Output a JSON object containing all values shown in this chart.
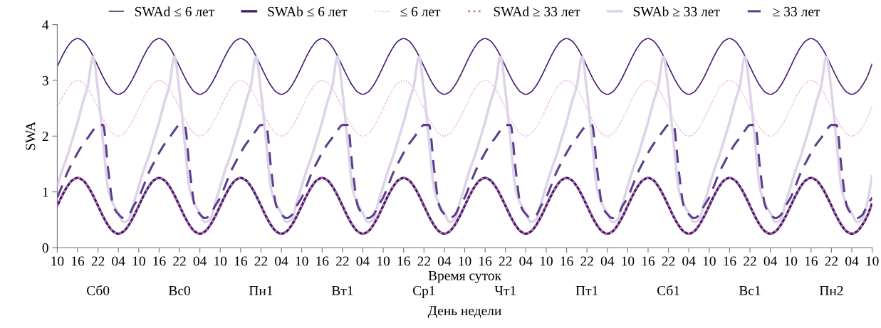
{
  "chart_data": {
    "type": "line",
    "xlabel": "Время суток",
    "ylabel": "SWA",
    "x2label": "День недели",
    "ylim": [
      0,
      4
    ],
    "yticks": [
      0,
      1,
      2,
      3,
      4
    ],
    "annotations": [
      "Сб0",
      "Вс0",
      "Пн1",
      "Вт1",
      "Ср1",
      "Чт1",
      "Пт1",
      "Сб1",
      "Вс1",
      "Пн2"
    ],
    "categories": [
      "10",
      null,
      null,
      null,
      "16",
      null,
      null,
      null,
      "22",
      null,
      null,
      null,
      "04",
      null,
      null,
      null,
      "10",
      null,
      null,
      null,
      "16",
      null,
      null,
      null,
      "22",
      null,
      null,
      null,
      "04",
      null,
      null,
      null,
      "10",
      null,
      null,
      null,
      "16",
      null,
      null,
      null,
      "22",
      null,
      null,
      null,
      "04",
      null,
      null,
      null,
      "10",
      null,
      null,
      null,
      "16",
      null,
      null,
      null,
      "22",
      null,
      null,
      null,
      "04",
      null,
      null,
      null,
      "10",
      null,
      null,
      null,
      "16",
      null,
      null,
      null,
      "22",
      null,
      null,
      null,
      "04",
      null,
      null,
      null,
      "10",
      null,
      null,
      null,
      "16",
      null,
      null,
      null,
      "22",
      null,
      null,
      null,
      "04",
      null,
      null,
      null,
      "10",
      null,
      null,
      null,
      "16",
      null,
      null,
      null,
      "22",
      null,
      null,
      null,
      "04",
      null,
      null,
      null,
      "10",
      null,
      null,
      null,
      "16",
      null,
      null,
      null,
      "22",
      null,
      null,
      null,
      "04",
      null,
      null,
      null,
      "10",
      null,
      null,
      null,
      "16",
      null,
      null,
      null,
      "22",
      null,
      null,
      null,
      "04",
      null,
      null,
      null,
      "10",
      null,
      null,
      null,
      "16",
      null,
      null,
      null,
      "22",
      null,
      null,
      null,
      "04",
      null,
      null,
      null,
      "10"
    ],
    "grid": false,
    "legend": "top",
    "marker": "none",
    "series": [
      {
        "name": "SWAd ≤ 6 лет",
        "color": "#4a1f73",
        "line_style": "solid",
        "values": [
          3.25,
          3.44,
          3.6,
          3.71,
          3.75,
          3.71,
          3.6,
          3.44,
          3.25,
          3.06,
          2.9,
          2.79,
          2.75,
          2.79,
          2.9,
          3.06,
          3.25,
          3.44,
          3.6,
          3.71,
          3.75,
          3.71,
          3.6,
          3.44,
          3.25,
          3.06,
          2.9,
          2.79,
          2.75,
          2.79,
          2.9,
          3.06,
          3.25,
          3.44,
          3.6,
          3.71,
          3.75,
          3.71,
          3.6,
          3.44,
          3.25,
          3.06,
          2.9,
          2.79,
          2.75,
          2.79,
          2.9,
          3.06,
          3.25,
          3.44,
          3.6,
          3.71,
          3.75,
          3.71,
          3.6,
          3.44,
          3.25,
          3.06,
          2.9,
          2.79,
          2.75,
          2.79,
          2.9,
          3.06,
          3.25,
          3.44,
          3.6,
          3.71,
          3.75,
          3.71,
          3.6,
          3.44,
          3.25,
          3.06,
          2.9,
          2.79,
          2.75,
          2.79,
          2.9,
          3.06,
          3.25,
          3.44,
          3.6,
          3.71,
          3.75,
          3.71,
          3.6,
          3.44,
          3.25,
          3.06,
          2.9,
          2.79,
          2.75,
          2.79,
          2.9,
          3.06,
          3.25,
          3.44,
          3.6,
          3.71,
          3.75,
          3.71,
          3.6,
          3.44,
          3.25,
          3.06,
          2.9,
          2.79,
          2.75,
          2.79,
          2.9,
          3.06,
          3.25,
          3.44,
          3.6,
          3.71,
          3.75,
          3.71,
          3.6,
          3.44,
          3.25,
          3.06,
          2.9,
          2.79,
          2.75,
          2.79,
          2.9,
          3.06,
          3.25,
          3.44,
          3.6,
          3.71,
          3.75,
          3.71,
          3.6,
          3.44,
          3.25,
          3.06,
          2.9,
          2.79,
          2.75,
          2.79,
          2.9,
          3.06,
          3.25,
          3.44,
          3.6,
          3.71,
          3.75,
          3.71,
          3.6,
          3.44,
          3.25,
          3.06,
          2.9,
          2.79,
          2.75,
          2.79,
          2.9,
          3.06,
          3.3
        ]
      },
      {
        "name": "SWAb ≤ 6 лет",
        "color": "#3b1f6b",
        "line_style": "solid",
        "values": [
          0.75,
          0.94,
          1.1,
          1.21,
          1.25,
          1.21,
          1.1,
          0.94,
          0.75,
          0.56,
          0.4,
          0.29,
          0.25,
          0.29,
          0.4,
          0.56,
          0.75,
          0.94,
          1.1,
          1.21,
          1.25,
          1.21,
          1.1,
          0.94,
          0.75,
          0.56,
          0.4,
          0.29,
          0.25,
          0.29,
          0.4,
          0.56,
          0.75,
          0.94,
          1.1,
          1.21,
          1.25,
          1.21,
          1.1,
          0.94,
          0.75,
          0.56,
          0.4,
          0.29,
          0.25,
          0.29,
          0.4,
          0.56,
          0.75,
          0.94,
          1.1,
          1.21,
          1.25,
          1.21,
          1.1,
          0.94,
          0.75,
          0.56,
          0.4,
          0.29,
          0.25,
          0.29,
          0.4,
          0.56,
          0.75,
          0.94,
          1.1,
          1.21,
          1.25,
          1.21,
          1.1,
          0.94,
          0.75,
          0.56,
          0.4,
          0.29,
          0.25,
          0.29,
          0.4,
          0.56,
          0.75,
          0.94,
          1.1,
          1.21,
          1.25,
          1.21,
          1.1,
          0.94,
          0.75,
          0.56,
          0.4,
          0.29,
          0.25,
          0.29,
          0.4,
          0.56,
          0.75,
          0.94,
          1.1,
          1.21,
          1.25,
          1.21,
          1.1,
          0.94,
          0.75,
          0.56,
          0.4,
          0.29,
          0.25,
          0.29,
          0.4,
          0.56,
          0.75,
          0.94,
          1.1,
          1.21,
          1.25,
          1.21,
          1.1,
          0.94,
          0.75,
          0.56,
          0.4,
          0.29,
          0.25,
          0.29,
          0.4,
          0.56,
          0.75,
          0.94,
          1.1,
          1.21,
          1.25,
          1.21,
          1.1,
          0.94,
          0.75,
          0.56,
          0.4,
          0.29,
          0.25,
          0.29,
          0.4,
          0.56,
          0.75,
          0.94,
          1.1,
          1.21,
          1.25,
          1.21,
          1.1,
          0.94,
          0.75,
          0.56,
          0.4,
          0.29,
          0.25,
          0.29,
          0.4,
          0.56,
          0.8
        ]
      },
      {
        "name": "≤ 6 лет",
        "color": "#e58fc8",
        "line_style": "dotted",
        "values": [
          2.5,
          2.69,
          2.85,
          2.96,
          3.0,
          2.96,
          2.85,
          2.69,
          2.5,
          2.31,
          2.15,
          2.04,
          2.0,
          2.04,
          2.15,
          2.31,
          2.5,
          2.69,
          2.85,
          2.96,
          3.0,
          2.96,
          2.85,
          2.69,
          2.5,
          2.31,
          2.15,
          2.04,
          2.0,
          2.04,
          2.15,
          2.31,
          2.5,
          2.69,
          2.85,
          2.96,
          3.0,
          2.96,
          2.85,
          2.69,
          2.5,
          2.31,
          2.15,
          2.04,
          2.0,
          2.04,
          2.15,
          2.31,
          2.5,
          2.69,
          2.85,
          2.96,
          3.0,
          2.96,
          2.85,
          2.69,
          2.5,
          2.31,
          2.15,
          2.04,
          2.0,
          2.04,
          2.15,
          2.31,
          2.5,
          2.69,
          2.85,
          2.96,
          3.0,
          2.96,
          2.85,
          2.69,
          2.5,
          2.31,
          2.15,
          2.04,
          2.0,
          2.04,
          2.15,
          2.31,
          2.5,
          2.69,
          2.85,
          2.96,
          3.0,
          2.96,
          2.85,
          2.69,
          2.5,
          2.31,
          2.15,
          2.04,
          2.0,
          2.04,
          2.15,
          2.31,
          2.5,
          2.69,
          2.85,
          2.96,
          3.0,
          2.96,
          2.85,
          2.69,
          2.5,
          2.31,
          2.15,
          2.04,
          2.0,
          2.04,
          2.15,
          2.31,
          2.5,
          2.69,
          2.85,
          2.96,
          3.0,
          2.96,
          2.85,
          2.69,
          2.5,
          2.31,
          2.15,
          2.04,
          2.0,
          2.04,
          2.15,
          2.31,
          2.5,
          2.69,
          2.85,
          2.96,
          3.0,
          2.96,
          2.85,
          2.69,
          2.5,
          2.31,
          2.15,
          2.04,
          2.0,
          2.04,
          2.15,
          2.31,
          2.5,
          2.69,
          2.85,
          2.96,
          3.0,
          2.96,
          2.85,
          2.69,
          2.5,
          2.31,
          2.15,
          2.04,
          2.0,
          2.04,
          2.15,
          2.31,
          2.55
        ]
      },
      {
        "name": "SWAd ≥ 33 лет",
        "color": "#d56db5",
        "line_style": "dotted",
        "values": [
          0.75,
          0.94,
          1.1,
          1.21,
          1.25,
          1.21,
          1.1,
          0.94,
          0.75,
          0.56,
          0.4,
          0.29,
          0.25,
          0.29,
          0.4,
          0.56,
          0.75,
          0.94,
          1.1,
          1.21,
          1.25,
          1.21,
          1.1,
          0.94,
          0.75,
          0.56,
          0.4,
          0.29,
          0.25,
          0.29,
          0.4,
          0.56,
          0.75,
          0.94,
          1.1,
          1.21,
          1.25,
          1.21,
          1.1,
          0.94,
          0.75,
          0.56,
          0.4,
          0.29,
          0.25,
          0.29,
          0.4,
          0.56,
          0.75,
          0.94,
          1.1,
          1.21,
          1.25,
          1.21,
          1.1,
          0.94,
          0.75,
          0.56,
          0.4,
          0.29,
          0.25,
          0.29,
          0.4,
          0.56,
          0.75,
          0.94,
          1.1,
          1.21,
          1.25,
          1.21,
          1.1,
          0.94,
          0.75,
          0.56,
          0.4,
          0.29,
          0.25,
          0.29,
          0.4,
          0.56,
          0.75,
          0.94,
          1.1,
          1.21,
          1.25,
          1.21,
          1.1,
          0.94,
          0.75,
          0.56,
          0.4,
          0.29,
          0.25,
          0.29,
          0.4,
          0.56,
          0.75,
          0.94,
          1.1,
          1.21,
          1.25,
          1.21,
          1.1,
          0.94,
          0.75,
          0.56,
          0.4,
          0.29,
          0.25,
          0.29,
          0.4,
          0.56,
          0.75,
          0.94,
          1.1,
          1.21,
          1.25,
          1.21,
          1.1,
          0.94,
          0.75,
          0.56,
          0.4,
          0.29,
          0.25,
          0.29,
          0.4,
          0.56,
          0.75,
          0.94,
          1.1,
          1.21,
          1.25,
          1.21,
          1.1,
          0.94,
          0.75,
          0.56,
          0.4,
          0.29,
          0.25,
          0.29,
          0.4,
          0.56,
          0.75,
          0.94,
          1.1,
          1.21,
          1.25,
          1.21,
          1.1,
          0.94,
          0.75,
          0.56,
          0.4,
          0.29,
          0.25,
          0.29,
          0.4,
          0.56,
          0.8
        ]
      },
      {
        "name": "SWAb ≥ 33 лет",
        "color": "#dcd5e8",
        "line_style": "solid",
        "values": [
          1.1,
          1.4,
          1.65,
          1.95,
          2.25,
          2.6,
          2.9,
          3.42,
          2.8,
          1.9,
          1.05,
          0.78,
          0.62,
          0.46,
          0.5,
          0.8,
          1.1,
          1.4,
          1.65,
          1.95,
          2.25,
          2.6,
          2.9,
          3.42,
          2.8,
          1.9,
          1.05,
          0.78,
          0.62,
          0.46,
          0.5,
          0.8,
          1.1,
          1.4,
          1.65,
          1.95,
          2.25,
          2.6,
          2.9,
          3.42,
          2.8,
          1.9,
          1.05,
          0.78,
          0.62,
          0.46,
          0.5,
          0.8,
          1.1,
          1.4,
          1.65,
          1.95,
          2.25,
          2.6,
          2.9,
          3.42,
          2.8,
          1.9,
          1.05,
          0.78,
          0.62,
          0.46,
          0.5,
          0.8,
          1.1,
          1.4,
          1.65,
          1.95,
          2.25,
          2.6,
          2.9,
          3.42,
          2.8,
          1.9,
          1.05,
          0.78,
          0.62,
          0.46,
          0.5,
          0.8,
          1.1,
          1.4,
          1.65,
          1.95,
          2.25,
          2.6,
          2.9,
          3.42,
          2.8,
          1.9,
          1.05,
          0.78,
          0.62,
          0.46,
          0.5,
          0.8,
          1.1,
          1.4,
          1.65,
          1.95,
          2.25,
          2.6,
          2.9,
          3.42,
          2.8,
          1.9,
          1.05,
          0.78,
          0.62,
          0.46,
          0.5,
          0.8,
          1.1,
          1.4,
          1.65,
          1.95,
          2.25,
          2.6,
          2.9,
          3.42,
          2.8,
          1.9,
          1.05,
          0.78,
          0.62,
          0.46,
          0.5,
          0.8,
          1.1,
          1.4,
          1.65,
          1.95,
          2.25,
          2.6,
          2.9,
          3.42,
          2.8,
          1.9,
          1.05,
          0.78,
          0.62,
          0.46,
          0.5,
          0.8,
          1.1,
          1.4,
          1.65,
          1.95,
          2.25,
          2.6,
          2.9,
          3.42,
          2.8,
          1.9,
          1.05,
          0.78,
          0.62,
          0.46,
          0.5,
          0.8,
          1.3
        ]
      },
      {
        "name": "≥ 33 лет",
        "color": "#5e3d8e",
        "line_style": "dashed",
        "values": [
          0.9,
          1.12,
          1.35,
          1.53,
          1.7,
          1.85,
          1.97,
          2.1,
          2.2,
          2.2,
          1.4,
          0.75,
          0.6,
          0.53,
          0.58,
          0.75,
          0.9,
          1.12,
          1.35,
          1.53,
          1.7,
          1.85,
          1.97,
          2.1,
          2.2,
          2.2,
          1.4,
          0.75,
          0.6,
          0.53,
          0.58,
          0.75,
          0.9,
          1.12,
          1.35,
          1.53,
          1.7,
          1.85,
          1.97,
          2.1,
          2.2,
          2.2,
          1.4,
          0.75,
          0.6,
          0.53,
          0.58,
          0.75,
          0.9,
          1.12,
          1.35,
          1.53,
          1.7,
          1.85,
          1.97,
          2.1,
          2.2,
          2.2,
          1.4,
          0.75,
          0.6,
          0.53,
          0.58,
          0.75,
          0.9,
          1.12,
          1.35,
          1.53,
          1.7,
          1.85,
          1.97,
          2.1,
          2.2,
          2.2,
          1.4,
          0.75,
          0.6,
          0.53,
          0.58,
          0.75,
          0.9,
          1.12,
          1.35,
          1.53,
          1.7,
          1.85,
          1.97,
          2.1,
          2.2,
          2.2,
          1.4,
          0.75,
          0.6,
          0.53,
          0.58,
          0.75,
          0.9,
          1.12,
          1.35,
          1.53,
          1.7,
          1.85,
          1.97,
          2.1,
          2.2,
          2.2,
          1.4,
          0.75,
          0.6,
          0.53,
          0.58,
          0.75,
          0.9,
          1.12,
          1.35,
          1.53,
          1.7,
          1.85,
          1.97,
          2.1,
          2.2,
          2.2,
          1.4,
          0.75,
          0.6,
          0.53,
          0.58,
          0.75,
          0.9,
          1.12,
          1.35,
          1.53,
          1.7,
          1.85,
          1.97,
          2.1,
          2.2,
          2.2,
          1.4,
          0.75,
          0.6,
          0.53,
          0.58,
          0.75,
          0.9,
          1.12,
          1.35,
          1.53,
          1.7,
          1.85,
          1.97,
          2.1,
          2.2,
          2.2,
          1.4,
          0.75,
          0.6,
          0.53,
          0.58,
          0.75,
          0.9
        ]
      }
    ]
  }
}
